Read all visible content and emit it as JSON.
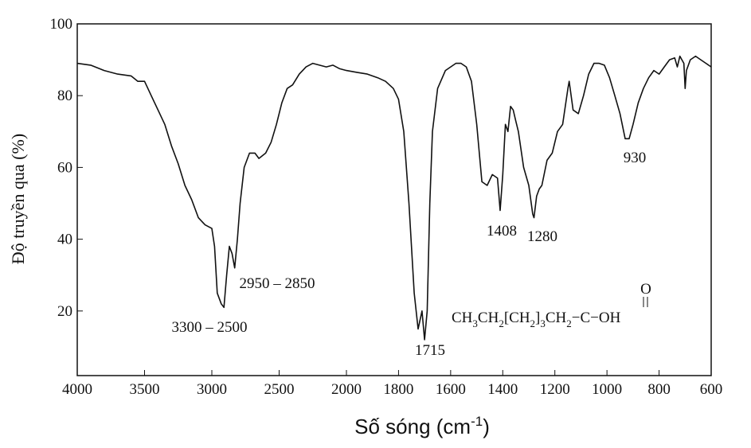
{
  "chart_data": {
    "type": "line",
    "ylabel": "Độ truyền qua (%)",
    "xlabel": [
      "Số sóng (cm",
      "-1",
      ")"
    ],
    "xlim": [
      4000,
      600
    ],
    "x_scale_break": 2000,
    "ylim": [
      2,
      100
    ],
    "xticks": [
      4000,
      3500,
      3000,
      2500,
      2000,
      1800,
      1600,
      1400,
      1200,
      1000,
      800,
      600
    ],
    "yticks": [
      20,
      40,
      60,
      80,
      100
    ],
    "series": [
      {
        "color": "#111111",
        "x": [
          4000,
          3900,
          3800,
          3700,
          3600,
          3550,
          3500,
          3450,
          3400,
          3350,
          3300,
          3250,
          3200,
          3150,
          3100,
          3050,
          3000,
          2980,
          2960,
          2930,
          2910,
          2890,
          2870,
          2850,
          2830,
          2810,
          2790,
          2760,
          2720,
          2680,
          2650,
          2600,
          2560,
          2520,
          2480,
          2440,
          2400,
          2350,
          2300,
          2250,
          2200,
          2150,
          2100,
          2050,
          2000,
          1960,
          1920,
          1880,
          1850,
          1820,
          1800,
          1780,
          1760,
          1740,
          1725,
          1710,
          1700,
          1690,
          1680,
          1670,
          1650,
          1620,
          1580,
          1560,
          1540,
          1520,
          1500,
          1480,
          1460,
          1440,
          1420,
          1410,
          1400,
          1390,
          1380,
          1370,
          1360,
          1350,
          1340,
          1320,
          1300,
          1285,
          1280,
          1270,
          1260,
          1250,
          1230,
          1210,
          1190,
          1170,
          1150,
          1145,
          1130,
          1110,
          1090,
          1070,
          1050,
          1030,
          1010,
          990,
          970,
          950,
          930,
          915,
          900,
          880,
          860,
          840,
          820,
          800,
          780,
          760,
          740,
          730,
          720,
          705,
          700,
          695,
          680,
          660,
          640,
          620,
          600
        ],
        "values": [
          89,
          88.5,
          87,
          86,
          85.5,
          84,
          84,
          80,
          76,
          72,
          66,
          61,
          55,
          51,
          46,
          44,
          43,
          38,
          25,
          22,
          21,
          30,
          38,
          36,
          32,
          40,
          50,
          60,
          64,
          64,
          62.5,
          64,
          67,
          72,
          78,
          82,
          83,
          86,
          88,
          89,
          88.5,
          88,
          88.5,
          87.5,
          87,
          86.5,
          86,
          85,
          84,
          82,
          79,
          70,
          50,
          25,
          15,
          20,
          12,
          20,
          50,
          70,
          82,
          87,
          89,
          89,
          88,
          84,
          72,
          56,
          55,
          58,
          57,
          48,
          58,
          72,
          70,
          77,
          76,
          73,
          70,
          60,
          55,
          47,
          46,
          52,
          54,
          55,
          62,
          64,
          70,
          72,
          82,
          84,
          76,
          75,
          80,
          86,
          89,
          89,
          88.5,
          85,
          80,
          75,
          68,
          68,
          72,
          78,
          82,
          85,
          87,
          86,
          88,
          90,
          90.5,
          88,
          91,
          89,
          82,
          87,
          90,
          91,
          90,
          89,
          88
        ]
      }
    ],
    "annotations": [
      "3300 – 2500",
      "2950 – 2850",
      "1715",
      "1408",
      "1280",
      "930"
    ],
    "formula": [
      "CH",
      "3",
      "CH",
      "2",
      "[CH",
      "2",
      "]",
      "3",
      "CH",
      "2",
      "−C−OH",
      "O"
    ]
  }
}
